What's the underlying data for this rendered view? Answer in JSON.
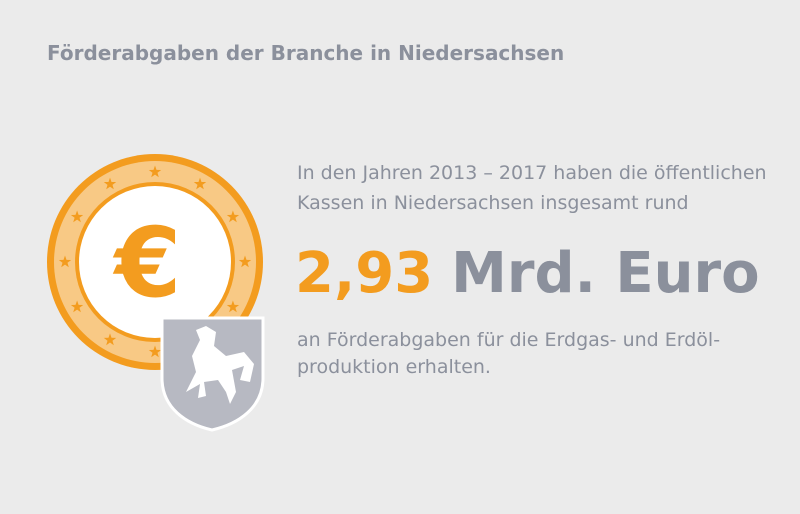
{
  "header": {
    "title": "Förderabgaben der Branche in Niedersachsen"
  },
  "icon": {
    "symbol": "€"
  },
  "intro": [
    "In den Jahren 2013 – 2017 haben die öffentlichen",
    "Kassen in Niedersachsen insgesamt rund"
  ],
  "highlight": {
    "amount": "2,93",
    "unit": "Mrd. Euro"
  },
  "outro": [
    "an Förderabgaben für die Erdgas- und Erdöl-",
    "produktion erhalten."
  ]
}
